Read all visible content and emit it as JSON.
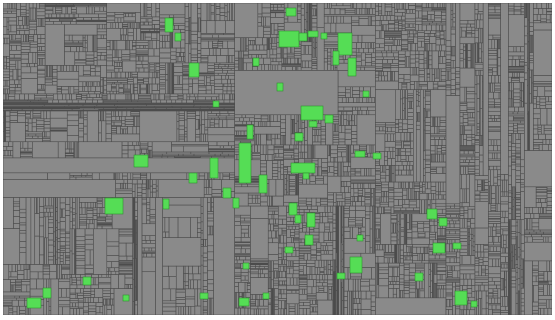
{
  "treemap": {
    "colors": {
      "background": "#ffffff",
      "cell_fill": "#8a8a8a",
      "cell_border": "#4c4c4c",
      "highlight_fill": "#55dd55",
      "highlight_border": "#2f8f2f"
    },
    "cells": {
      "random_seed": 73,
      "partition_levels": 9
    },
    "highlighted_count": 56
  }
}
